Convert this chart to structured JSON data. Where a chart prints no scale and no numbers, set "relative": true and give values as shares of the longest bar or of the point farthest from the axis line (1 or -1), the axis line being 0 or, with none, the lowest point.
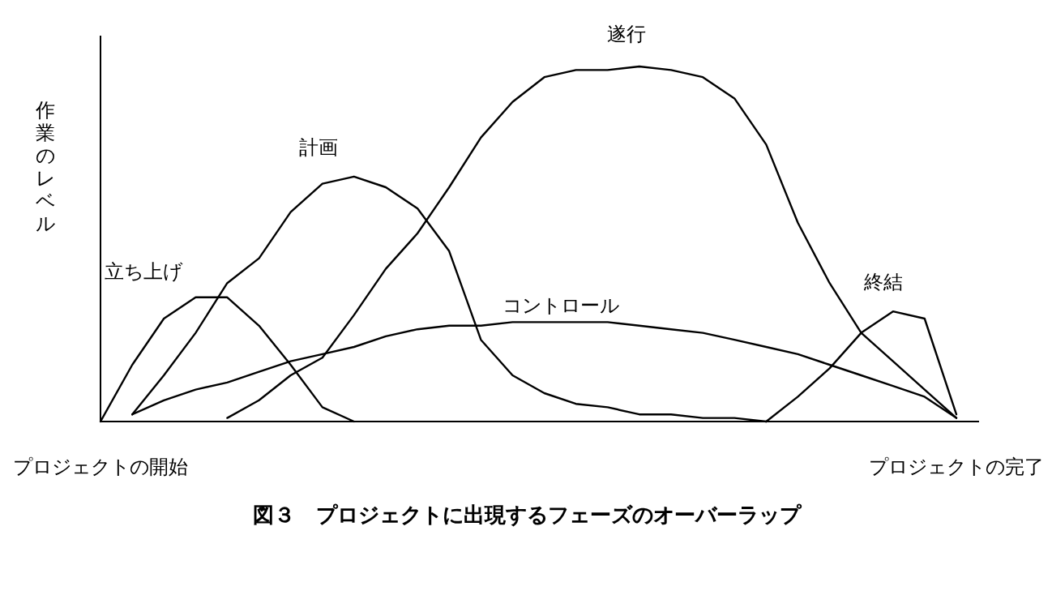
{
  "chart_data": {
    "type": "line",
    "relative": true,
    "title": "図３　プロジェクトに出現するフェーズのオーバーラップ",
    "ylabel": "作業のレベル",
    "categories": [
      "プロジェクトの開始",
      null,
      null,
      null,
      null,
      null,
      null,
      null,
      null,
      null,
      null,
      null,
      null,
      null,
      null,
      null,
      null,
      null,
      null,
      null,
      null,
      null,
      null,
      null,
      null,
      null,
      null,
      "プロジェクトの完了"
    ],
    "series": [
      {
        "name": "立ち上げ",
        "color": "#000000",
        "values": [
          0,
          0.16,
          0.29,
          0.35,
          0.35,
          0.27,
          0.16,
          0.04,
          0,
          null,
          null,
          null,
          null,
          null,
          null,
          null,
          null,
          null,
          null,
          null,
          null,
          null,
          null,
          null,
          null,
          null,
          null,
          null
        ]
      },
      {
        "name": "計画",
        "color": "#000000",
        "values": [
          null,
          0.02,
          0.13,
          0.25,
          0.39,
          0.46,
          0.59,
          0.67,
          0.69,
          0.66,
          0.6,
          0.48,
          0.23,
          0.13,
          0.08,
          0.05,
          0.04,
          0.02,
          0.02,
          0.01,
          0.01,
          0,
          null,
          null,
          null,
          null,
          null,
          null
        ]
      },
      {
        "name": "遂行",
        "color": "#000000",
        "values": [
          null,
          null,
          null,
          null,
          0.01,
          0.06,
          0.13,
          0.18,
          0.3,
          0.43,
          0.53,
          0.66,
          0.8,
          0.9,
          0.97,
          0.99,
          0.99,
          1,
          0.99,
          0.97,
          0.91,
          0.78,
          0.56,
          0.39,
          0.25,
          0.17,
          0.09,
          0.01
        ]
      },
      {
        "name": "コントロール",
        "color": "#000000",
        "values": [
          null,
          0.02,
          0.06,
          0.09,
          0.11,
          0.14,
          0.17,
          0.19,
          0.21,
          0.24,
          0.26,
          0.27,
          0.27,
          0.28,
          0.28,
          0.28,
          0.28,
          0.27,
          0.26,
          0.25,
          0.23,
          0.21,
          0.19,
          0.16,
          0.13,
          0.1,
          0.07,
          0.01
        ]
      },
      {
        "name": "終結",
        "color": "#000000",
        "values": [
          null,
          null,
          null,
          null,
          null,
          null,
          null,
          null,
          null,
          null,
          null,
          null,
          null,
          null,
          null,
          null,
          null,
          null,
          null,
          null,
          null,
          0,
          0.07,
          0.15,
          0.25,
          0.31,
          0.29,
          0.02
        ]
      }
    ]
  }
}
